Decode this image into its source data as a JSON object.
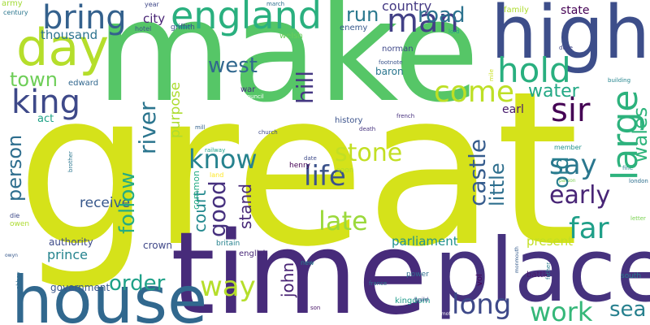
{
  "words": [
    {
      "text": "make",
      "color": "#56c667"
    },
    {
      "text": "great",
      "color": "#d5e21a"
    },
    {
      "text": "time",
      "color": "#472b7a"
    },
    {
      "text": "place",
      "color": "#46327e"
    },
    {
      "text": "high",
      "color": "#3d4e8a"
    },
    {
      "text": "house",
      "color": "#31688e"
    },
    {
      "text": "day",
      "color": "#b5de2b"
    },
    {
      "text": "england",
      "color": "#2ab07f"
    },
    {
      "text": "bring",
      "color": "#34618d"
    },
    {
      "text": "man",
      "color": "#424086"
    },
    {
      "text": "hold",
      "color": "#29af7f"
    },
    {
      "text": "king",
      "color": "#3e4989"
    },
    {
      "text": "come",
      "color": "#bddf26"
    },
    {
      "text": "sir",
      "color": "#440154"
    },
    {
      "text": "town",
      "color": "#6ece58"
    },
    {
      "text": "water",
      "color": "#22a884"
    },
    {
      "text": "large",
      "color": "#2db27d"
    },
    {
      "text": "west",
      "color": "#31688e"
    },
    {
      "text": "hill",
      "color": "#453882"
    },
    {
      "text": "run",
      "color": "#2a788e"
    },
    {
      "text": "road",
      "color": "#2c728e"
    },
    {
      "text": "country",
      "color": "#443983"
    },
    {
      "text": "state",
      "color": "#440154"
    },
    {
      "text": "thousand",
      "color": "#2c738e"
    },
    {
      "text": "city",
      "color": "#482475"
    },
    {
      "text": "griffith",
      "color": "#3b528b"
    },
    {
      "text": "purpose",
      "color": "#addc30"
    },
    {
      "text": "river",
      "color": "#2b758e"
    },
    {
      "text": "know",
      "color": "#26828e"
    },
    {
      "text": "life",
      "color": "#3b528b"
    },
    {
      "text": "stone",
      "color": "#c2df23"
    },
    {
      "text": "say",
      "color": "#2a778e"
    },
    {
      "text": "early",
      "color": "#482576"
    },
    {
      "text": "castle",
      "color": "#365c8d"
    },
    {
      "text": "little",
      "color": "#2e6f8e"
    },
    {
      "text": "old",
      "color": "#287d8e"
    },
    {
      "text": "wales",
      "color": "#2fb47c"
    },
    {
      "text": "far",
      "color": "#1f9f88"
    },
    {
      "text": "person",
      "color": "#2e6e8e"
    },
    {
      "text": "follow",
      "color": "#25ac82"
    },
    {
      "text": "good",
      "color": "#46307e"
    },
    {
      "text": "court",
      "color": "#23898e"
    },
    {
      "text": "stand",
      "color": "#482979"
    },
    {
      "text": "john",
      "color": "#482374"
    },
    {
      "text": "late",
      "color": "#9bd93c"
    },
    {
      "text": "receive",
      "color": "#38588c"
    },
    {
      "text": "parliament",
      "color": "#21918c"
    },
    {
      "text": "present",
      "color": "#c2df23"
    },
    {
      "text": "order",
      "color": "#1fa188"
    },
    {
      "text": "way",
      "color": "#b5de2b"
    },
    {
      "text": "long",
      "color": "#3e4989"
    },
    {
      "text": "work",
      "color": "#35b779"
    },
    {
      "text": "sea",
      "color": "#27808e"
    },
    {
      "text": "authority",
      "color": "#3e4c8a"
    },
    {
      "text": "prince",
      "color": "#25838e"
    },
    {
      "text": "crown",
      "color": "#3f4788"
    },
    {
      "text": "government",
      "color": "#39568c"
    },
    {
      "text": "earl",
      "color": "#481b6d"
    },
    {
      "text": "history",
      "color": "#3b528b"
    },
    {
      "text": "baron",
      "color": "#2a768e"
    },
    {
      "text": "norman",
      "color": "#3f4889"
    },
    {
      "text": "act",
      "color": "#1fa287"
    },
    {
      "text": "edward",
      "color": "#31678e"
    },
    {
      "text": "enemy",
      "color": "#38598c"
    },
    {
      "text": "family",
      "color": "#addc30"
    },
    {
      "text": "war",
      "color": "#46327e"
    },
    {
      "text": "welsh",
      "color": "#6ccd5a"
    },
    {
      "text": "english",
      "color": "#482878"
    },
    {
      "text": "battle",
      "color": "#481769"
    },
    {
      "text": "kingdom",
      "color": "#1e9b8a"
    },
    {
      "text": "south",
      "color": "#287c8e"
    },
    {
      "text": "power",
      "color": "#2f6c8e"
    },
    {
      "text": "vol",
      "color": "#440154"
    },
    {
      "text": "army",
      "color": "#a2da37"
    },
    {
      "text": "century",
      "color": "#2a768e"
    },
    {
      "text": "year",
      "color": "#3f4788"
    },
    {
      "text": "hotel",
      "color": "#3b528b"
    },
    {
      "text": "march",
      "color": "#2d708e"
    },
    {
      "text": "lord",
      "color": "#22a785"
    },
    {
      "text": "footnote",
      "color": "#3a538b"
    },
    {
      "text": "duke",
      "color": "#404688"
    },
    {
      "text": "building",
      "color": "#25858e"
    },
    {
      "text": "mile",
      "color": "#c8e020"
    },
    {
      "text": "council",
      "color": "#ffffff"
    },
    {
      "text": "church",
      "color": "#3e4a89"
    },
    {
      "text": "mill",
      "color": "#33638d"
    },
    {
      "text": "french",
      "color": "#46307e"
    },
    {
      "text": "death",
      "color": "#46327e"
    },
    {
      "text": "railway",
      "color": "#20a386"
    },
    {
      "text": "member",
      "color": "#20938c"
    },
    {
      "text": "land",
      "color": "#fde725"
    },
    {
      "text": "common",
      "color": "#25ac82"
    },
    {
      "text": "date",
      "color": "#3e4a89"
    },
    {
      "text": "henry",
      "color": "#440154"
    },
    {
      "text": "soon",
      "color": "#b2dd2d"
    },
    {
      "text": "fine",
      "color": "#25838e"
    },
    {
      "text": "london",
      "color": "#2e6f8e"
    },
    {
      "text": "father",
      "color": "#287c8e"
    },
    {
      "text": "letter",
      "color": "#7ad151"
    },
    {
      "text": "brother",
      "color": "#2a768e"
    },
    {
      "text": "die",
      "color": "#3e4a89"
    },
    {
      "text": "owen",
      "color": "#addc30"
    },
    {
      "text": "owyn",
      "color": "#38598c"
    },
    {
      "text": "abbey",
      "color": "#2f6c8e"
    },
    {
      "text": "britain",
      "color": "#26828e"
    },
    {
      "text": "new",
      "color": "#27808e"
    },
    {
      "text": "son",
      "color": "#481467"
    },
    {
      "text": "france",
      "color": "#2b758e"
    },
    {
      "text": "build",
      "color": "#3f4788"
    },
    {
      "text": "monmouth",
      "color": "#365c8d"
    },
    {
      "text": "commot",
      "color": "#ffffff"
    },
    {
      "text": "parson",
      "color": "#7ad151"
    }
  ]
}
